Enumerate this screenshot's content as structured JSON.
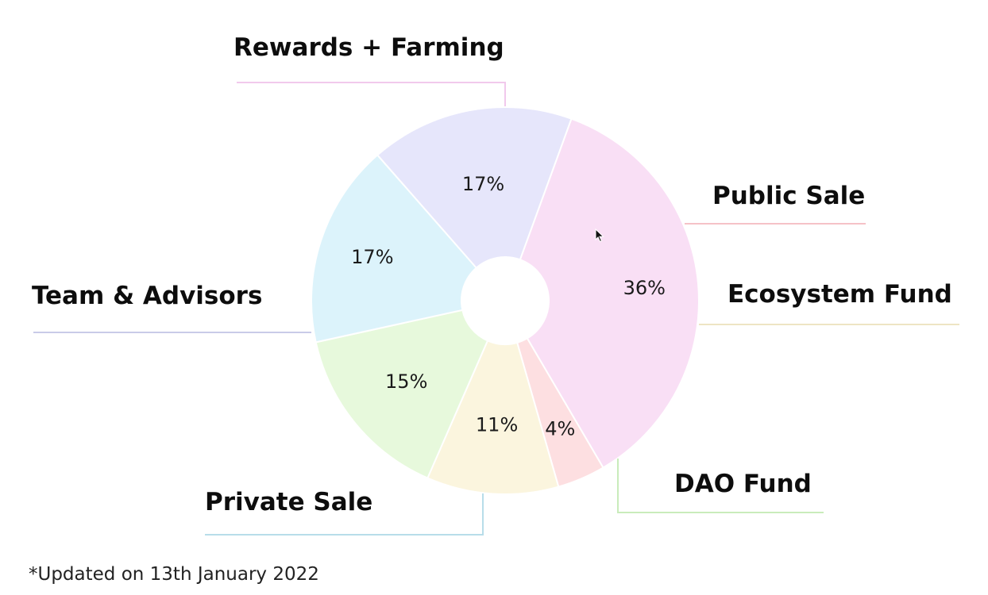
{
  "chart_data": {
    "type": "pie",
    "variant": "donut",
    "categories": [
      "Rewards + Farming",
      "Public Sale",
      "Ecosystem Fund",
      "DAO Fund",
      "Private Sale",
      "Team & Advisors"
    ],
    "values": [
      36,
      4,
      11,
      15,
      17,
      17
    ],
    "value_labels": [
      "36%",
      "4%",
      "11%",
      "15%",
      "17%",
      "17%"
    ],
    "colors": [
      "#f9dff5",
      "#fddfe1",
      "#fbf5de",
      "#e7f9dc",
      "#dcf3fb",
      "#e6e6fb"
    ],
    "leader_colors": [
      "#f1c9ec",
      "#f6c2c7",
      "#eee5c4",
      "#c9ecbb",
      "#b8dde9",
      "#c9cbe8"
    ],
    "legend": "none"
  },
  "footnote": "*Updated on 13th January 2022"
}
